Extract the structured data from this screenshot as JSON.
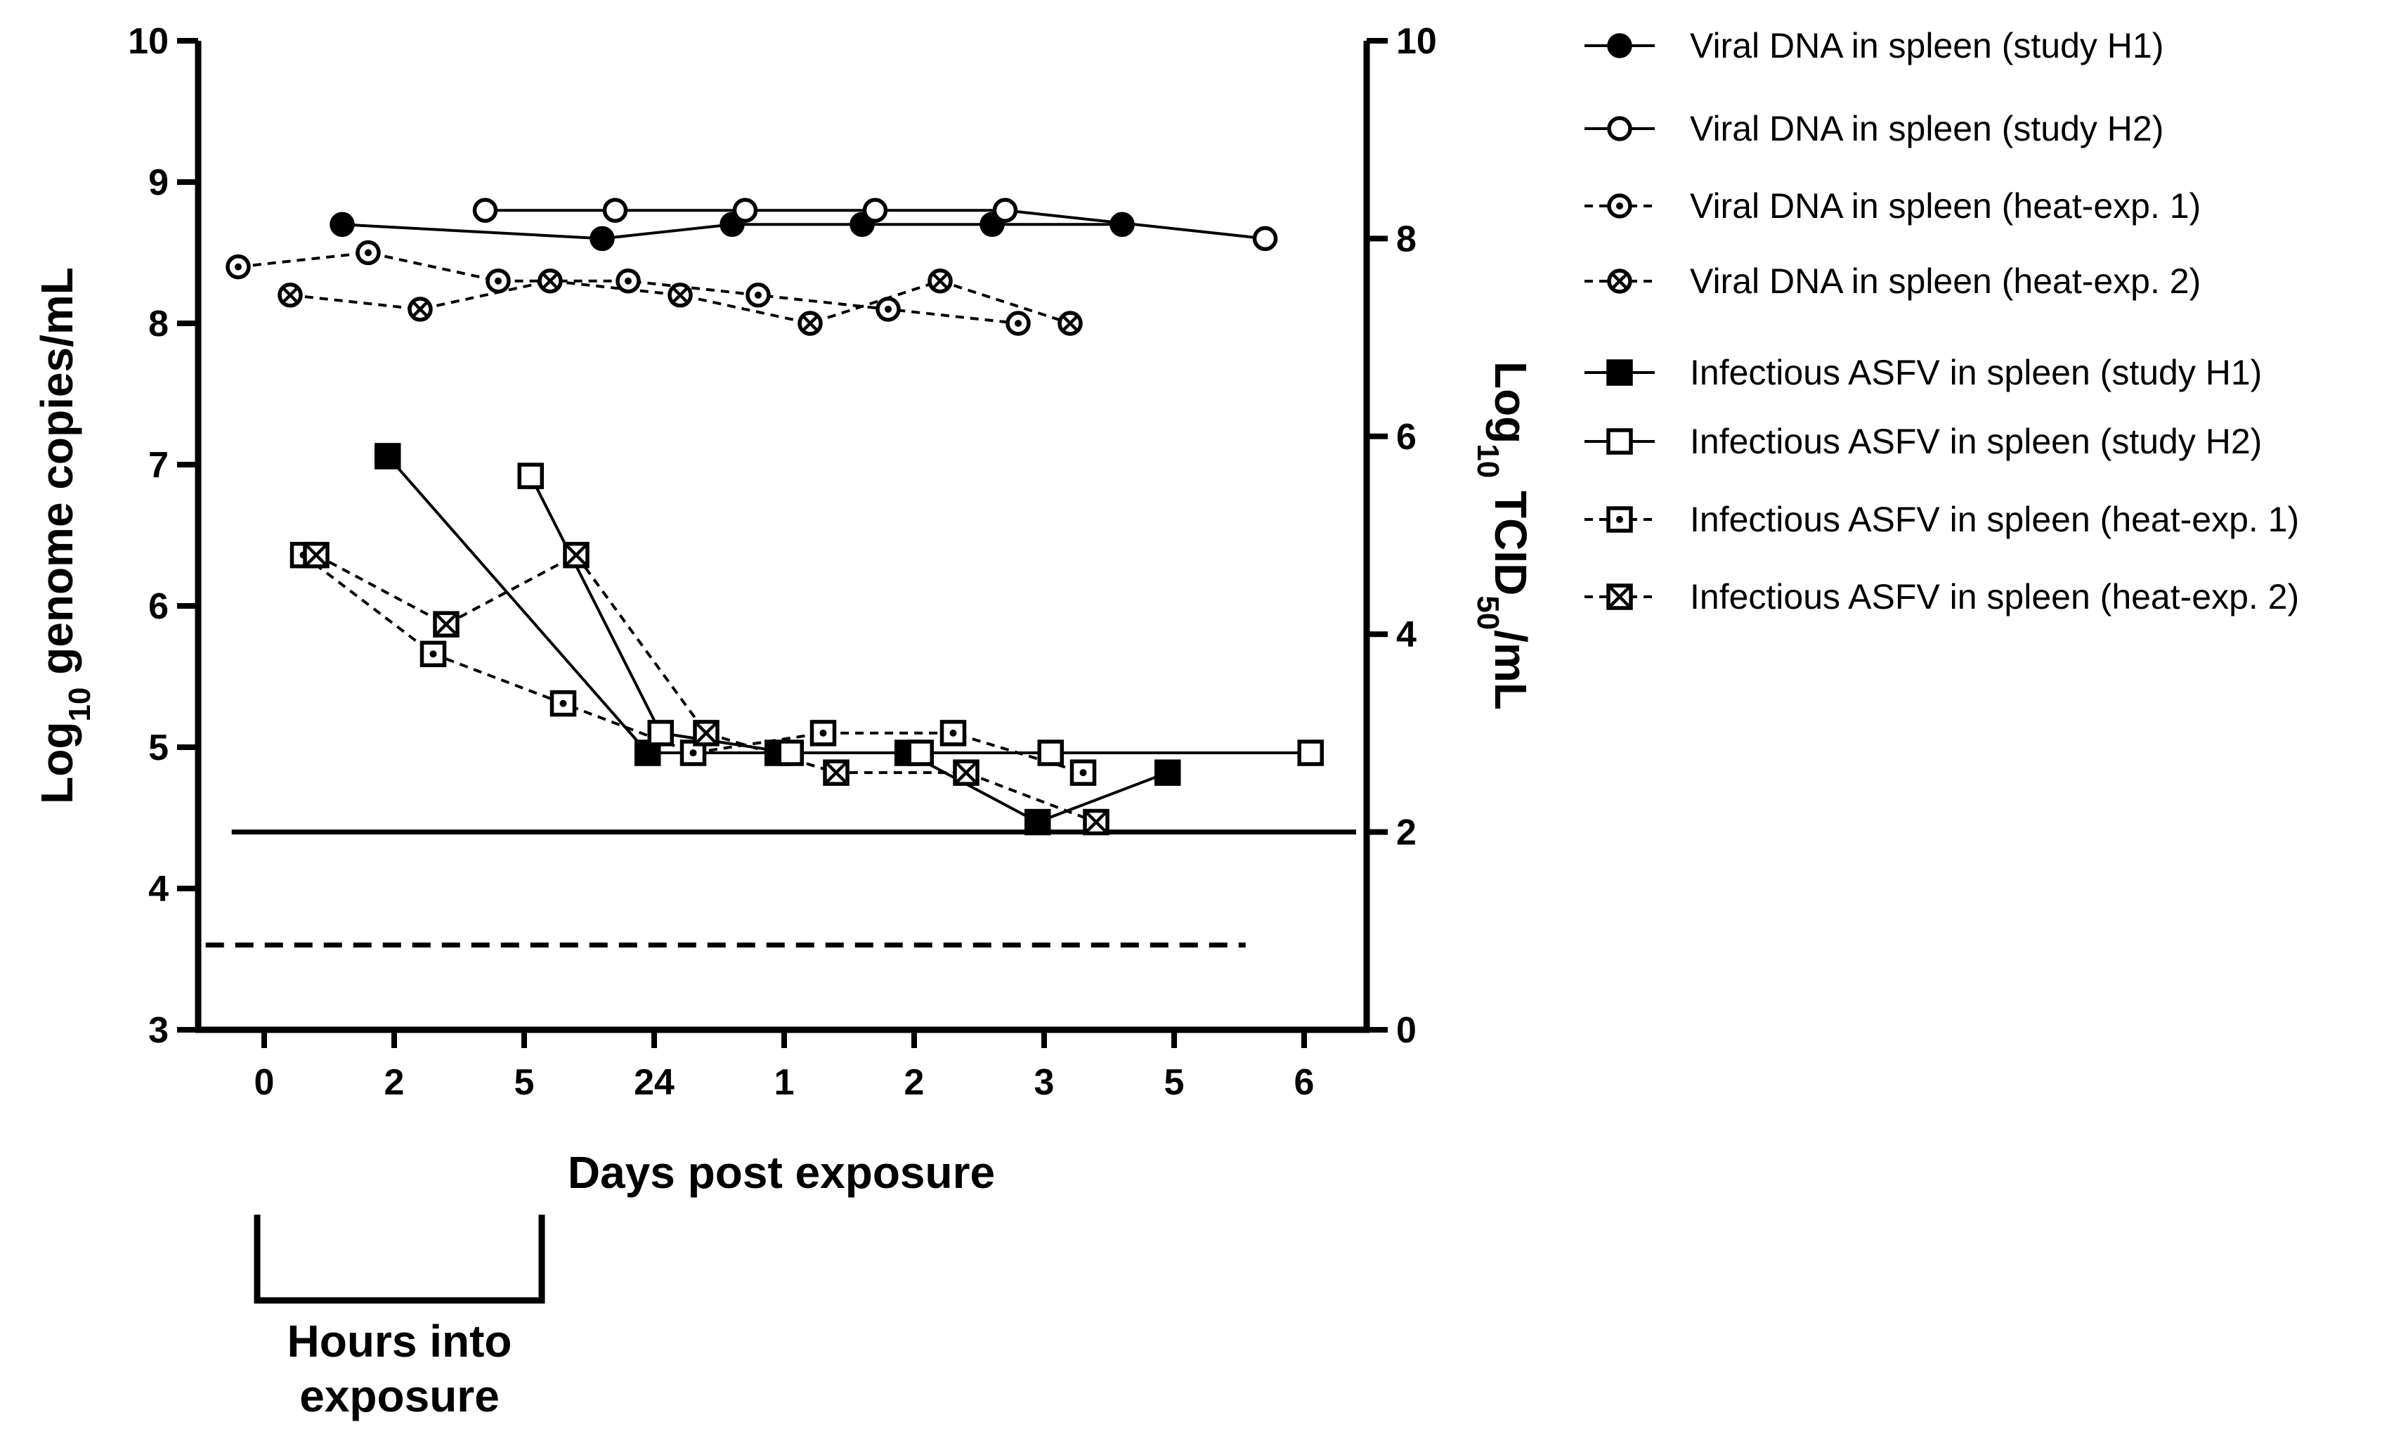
{
  "chart_data": {
    "type": "line",
    "xlabel": "Days post exposure",
    "ylabel_left": {
      "main": "Log",
      "sub": "10",
      "rest": " genome copies/mL"
    },
    "ylabel_right": {
      "main": "Log",
      "sub": "10",
      "mid": " TCID",
      "sub2": "50",
      "rest": "/mL"
    },
    "x_ticks": [
      "0",
      "2",
      "5",
      "24",
      "1",
      "2",
      "3",
      "5",
      "6"
    ],
    "y_left_ticks": [
      "3",
      "4",
      "5",
      "6",
      "7",
      "8",
      "9",
      "10"
    ],
    "y_right_ticks": [
      "0",
      "2",
      "4",
      "6",
      "8",
      "10"
    ],
    "ylim_left": [
      3,
      10
    ],
    "ylim_right": [
      0,
      10
    ],
    "bracket_label_line1": "Hours into",
    "bracket_label_line2": "exposure",
    "bracket_span_ticks": [
      0,
      2
    ],
    "limit_solid_tcid": 2.0,
    "limit_solid_x_range": [
      -0.25,
      8.4
    ],
    "limit_dashed_genome": 3.6,
    "limit_dashed_x_range": [
      -0.45,
      7.55
    ],
    "series": [
      {
        "name": "Viral DNA in spleen (study H1)",
        "axis": "left",
        "marker": "filled-circle",
        "dashed": false,
        "x": [
          0.6,
          2.6,
          3.6,
          4.6,
          5.6,
          6.6
        ],
        "y": [
          8.7,
          8.6,
          8.7,
          8.7,
          8.7,
          8.7
        ]
      },
      {
        "name": "Viral DNA in spleen (study H2)",
        "axis": "left",
        "marker": "open-circle",
        "dashed": false,
        "x": [
          1.7,
          2.7,
          3.7,
          4.7,
          5.7,
          7.7
        ],
        "y": [
          8.8,
          8.8,
          8.8,
          8.8,
          8.8,
          8.6
        ]
      },
      {
        "name": "Viral DNA in spleen (heat-exp. 1)",
        "axis": "left",
        "marker": "dot-circle",
        "dashed": true,
        "x": [
          -0.2,
          0.8,
          1.8,
          2.8,
          3.8,
          4.8,
          5.8
        ],
        "y": [
          8.4,
          8.5,
          8.3,
          8.3,
          8.2,
          8.1,
          8.0
        ]
      },
      {
        "name": "Viral DNA in spleen (heat-exp. 2)",
        "axis": "left",
        "marker": "cross-circle",
        "dashed": true,
        "x": [
          0.2,
          1.2,
          2.2,
          3.2,
          4.2,
          5.2,
          6.2
        ],
        "y": [
          8.2,
          8.1,
          8.3,
          8.2,
          8.0,
          8.3,
          8.0
        ]
      },
      {
        "name": "Infectious ASFV in spleen (study H1)",
        "axis": "right",
        "marker": "filled-square",
        "dashed": false,
        "x": [
          0.95,
          2.95,
          3.95,
          4.95,
          5.95,
          6.95
        ],
        "y": [
          5.8,
          2.8,
          2.8,
          2.8,
          2.1,
          2.6
        ]
      },
      {
        "name": "Infectious ASFV in spleen (study H2)",
        "axis": "right",
        "marker": "open-square",
        "dashed": false,
        "x": [
          2.05,
          3.05,
          4.05,
          5.05,
          6.05,
          8.05
        ],
        "y": [
          5.6,
          3.0,
          2.8,
          2.8,
          2.8,
          2.8
        ]
      },
      {
        "name": "Infectious ASFV in spleen (heat-exp. 1)",
        "axis": "right",
        "marker": "dot-square",
        "dashed": true,
        "x": [
          0.3,
          1.3,
          2.3,
          3.3,
          4.3,
          5.3,
          6.3
        ],
        "y": [
          4.8,
          3.8,
          3.3,
          2.8,
          3.0,
          3.0,
          2.6
        ]
      },
      {
        "name": "Infectious ASFV in spleen (heat-exp. 2)",
        "axis": "right",
        "marker": "cross-square",
        "dashed": true,
        "x": [
          0.4,
          1.4,
          2.4,
          3.4,
          4.4,
          5.4,
          6.4
        ],
        "y": [
          4.8,
          4.1,
          4.8,
          3.0,
          2.6,
          2.6,
          2.1
        ]
      }
    ]
  }
}
